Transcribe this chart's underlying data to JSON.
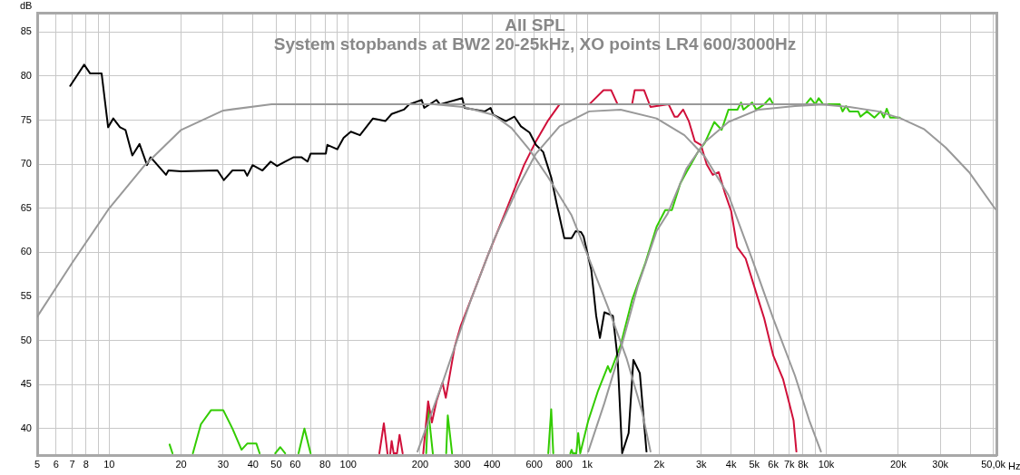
{
  "chart_data": {
    "type": "line",
    "title": "All SPL",
    "subtitle": "System stopbands at BW2 20-25kHz, XO points LR4 600/3000Hz",
    "ylabel": "dB",
    "xlabel": "Hz",
    "log": "x",
    "grid": true,
    "legend": false,
    "marker": "none",
    "line_style": "solid",
    "xlim": [
      5,
      51500
    ],
    "ylim": [
      37,
      87.2
    ],
    "xticks": [
      5,
      6,
      7,
      8,
      {
        "value": 9,
        "label": null
      },
      10,
      20,
      30,
      40,
      50,
      60,
      {
        "value": 70,
        "label": null
      },
      80,
      {
        "value": 90,
        "label": null
      },
      100,
      200,
      300,
      400,
      {
        "value": 500,
        "label": null
      },
      600,
      {
        "value": 700,
        "label": null
      },
      800,
      {
        "value": 900,
        "label": null
      },
      {
        "value": 1000,
        "label": "1k"
      },
      {
        "value": 2000,
        "label": "2k"
      },
      {
        "value": 3000,
        "label": "3k"
      },
      {
        "value": 4000,
        "label": "4k"
      },
      {
        "value": 5000,
        "label": "5k"
      },
      {
        "value": 6000,
        "label": "6k"
      },
      {
        "value": 7000,
        "label": "7k"
      },
      {
        "value": 8000,
        "label": "8k"
      },
      {
        "value": 9000,
        "label": null
      },
      {
        "value": 10000,
        "label": "10k"
      },
      {
        "value": 20000,
        "label": "20k"
      },
      {
        "value": 30000,
        "label": "30k"
      },
      {
        "value": 40000,
        "label": null
      },
      {
        "value": 50000,
        "label": "50,0k"
      }
    ],
    "yticks": [
      40,
      45,
      50,
      55,
      60,
      65,
      70,
      75,
      80,
      85
    ],
    "series": [
      {
        "color": "#999999",
        "x": [
          5,
          7,
          10,
          14.1,
          20,
          30,
          47.8,
          8000,
          9300,
          12500,
          16500,
          20500,
          25600,
          31600,
          39600,
          51000
        ],
        "values": [
          52.7,
          58.8,
          65.0,
          69.9,
          73.9,
          76.1,
          76.8,
          76.8,
          76.8,
          76.5,
          76.0,
          75.2,
          74.0,
          71.9,
          69.1,
          64.9
        ]
      },
      {
        "color": "#999999",
        "x": [
          150,
          228,
          304,
          405,
          483,
          575,
          687,
          860,
          1020,
          1220,
          1460,
          1700,
          1840
        ],
        "values": [
          76.8,
          76.8,
          76.5,
          75.6,
          74.1,
          71.6,
          68.5,
          64.2,
          59.2,
          53.8,
          48.0,
          41.8,
          37.4
        ]
      },
      {
        "color": "#999999",
        "x": [
          195,
          248,
          324,
          405,
          514,
          610,
          766,
          1020,
          1380,
          1950,
          2550,
          3100,
          3900,
          4900,
          6000,
          7400,
          8500,
          9500
        ],
        "values": [
          37.4,
          45.2,
          54.4,
          61.3,
          67.4,
          71.2,
          74.3,
          76.0,
          76.2,
          75.2,
          73.3,
          70.9,
          66.5,
          59.2,
          52.5,
          46.0,
          40.9,
          37.4
        ]
      },
      {
        "color": "#999999",
        "x": [
          1010,
          1180,
          1380,
          1630,
          1950,
          2170,
          2600,
          3100,
          3900,
          5200,
          7400,
          10100
        ],
        "values": [
          37.4,
          42.9,
          49.0,
          56.2,
          62.4,
          64.4,
          69.5,
          72.5,
          74.8,
          76.2,
          76.6,
          76.8
        ]
      },
      {
        "color": "#000000",
        "x": [
          6.87,
          7.86,
          8.33,
          9.3,
          9.9,
          10.4,
          11.1,
          11.7,
          12.5,
          13.4,
          14.4,
          14.9,
          17.3,
          17.7,
          20,
          28.4,
          30.2,
          32.8,
          36.8,
          37.8,
          39.8,
          43.8,
          47.4,
          50.4,
          54.4,
          59.2,
          63.7,
          67.6,
          69.6,
          80.6,
          81.8,
          90,
          95.7,
          102.6,
          112,
          127,
          143,
          152,
          171,
          180,
          203,
          208,
          234,
          242,
          300,
          307,
          373,
          394,
          405,
          457,
          496,
          528,
          574,
          610,
          654,
          707,
          744,
          802,
          860,
          895,
          942,
          966,
          1040,
          1090,
          1130,
          1180,
          1280,
          1340,
          1400,
          1490,
          1560,
          1660,
          1770
        ],
        "values": [
          78.9,
          81.3,
          80.3,
          80.3,
          74.2,
          75.2,
          74.2,
          73.9,
          71.0,
          72.3,
          69.9,
          70.8,
          68.8,
          69.3,
          69.2,
          69.3,
          68.2,
          69.3,
          69.3,
          68.7,
          69.9,
          69.3,
          70.3,
          69.8,
          70.3,
          70.8,
          70.8,
          70.3,
          71.2,
          71.2,
          72.2,
          71.7,
          73.0,
          73.7,
          73.3,
          75.2,
          74.9,
          75.7,
          76.2,
          76.8,
          77.3,
          76.4,
          77.3,
          76.8,
          77.5,
          76.4,
          76.0,
          76.4,
          75.6,
          74.9,
          75.4,
          74.3,
          73.6,
          72.2,
          71.4,
          68.5,
          65.6,
          61.6,
          61.6,
          62.4,
          62.3,
          61.8,
          58.0,
          52.8,
          50.3,
          53.2,
          52.8,
          48.0,
          37.2,
          39.5,
          47.8,
          46.3,
          37.4
        ]
      },
      {
        "color": "#d0103a",
        "x": [
          135,
          141,
          146,
          148,
          150,
          152,
          155,
          160,
          164,
          169,
          190,
          206,
          216,
          224,
          234,
          248,
          256,
          279,
          296,
          331,
          383,
          457,
          544,
          610,
          687,
          766,
          1020,
          1170,
          1260,
          1340,
          1540,
          1580,
          1730,
          1840,
          2190,
          2320,
          2390,
          2520,
          2660,
          2820,
          2990,
          3160,
          3350,
          3550,
          3760,
          4000,
          4240,
          4600,
          5080,
          5500,
          6000,
          6600,
          7000,
          7300,
          7500
        ],
        "values": [
          37.2,
          40.6,
          37.2,
          null,
          37.2,
          38.6,
          37.2,
          37.2,
          39.3,
          37.2,
          null,
          37.2,
          43.1,
          40.7,
          43.1,
          45.2,
          43.5,
          49.3,
          51.7,
          55.1,
          59.6,
          64.7,
          69.9,
          72.6,
          75.0,
          76.8,
          76.8,
          78.4,
          78.4,
          76.8,
          76.8,
          78.4,
          78.4,
          76.5,
          76.8,
          75.4,
          75.4,
          76.2,
          74.9,
          72.6,
          72.2,
          70.0,
          68.8,
          69.1,
          66.8,
          64.7,
          60.6,
          59.3,
          55.5,
          52.5,
          48.3,
          45.6,
          42.9,
          40.9,
          37.4
        ]
      },
      {
        "color": "#33cc00",
        "x": [
          17.9,
          18.4,
          20,
          22.4,
          24.2,
          26.7,
          30.0,
          32.8,
          35.8,
          37.8,
          41.3,
          42.6,
          46,
          49.5,
          52,
          54.5,
          58,
          62,
          65.6,
          69.6,
          100,
          212,
          216,
          226,
          240,
          257,
          261,
          272,
          400,
          687,
          707,
          721,
          800,
          850,
          860,
          870,
          900,
          917,
          935,
          1010,
          1110,
          1220,
          1250,
          1380,
          1540,
          1750,
          1950,
          2120,
          2260,
          2450,
          2600,
          2920,
          3100,
          3400,
          3650,
          3900,
          4250,
          4400,
          4500,
          4900,
          5100,
          5500,
          5800,
          6000,
          8200,
          8600,
          9000,
          9300,
          9700,
          11400,
          11700,
          12100,
          12500,
          13600,
          13900,
          14800,
          15900,
          16900,
          17400,
          17900,
          18500,
          20300
        ],
        "values": [
          38.2,
          37.2,
          null,
          37.2,
          40.5,
          42.1,
          42.1,
          40.0,
          37.6,
          38.3,
          38.3,
          37.2,
          null,
          37.2,
          37.9,
          37.2,
          null,
          37.2,
          40.0,
          37.2,
          null,
          37.2,
          42.2,
          37.2,
          null,
          37.2,
          41.5,
          37.2,
          null,
          37.2,
          42.2,
          37.2,
          null,
          37.2,
          37.6,
          37.2,
          37.2,
          39.5,
          37.2,
          40.9,
          44.3,
          47.1,
          46.4,
          49.5,
          54.6,
          58.8,
          62.9,
          64.8,
          64.8,
          67.8,
          69.1,
          71.5,
          72.4,
          74.8,
          73.9,
          76.2,
          76.2,
          77.0,
          76.2,
          77.0,
          76.2,
          76.8,
          77.5,
          76.8,
          76.8,
          77.5,
          76.8,
          77.5,
          76.8,
          76.8,
          76.0,
          76.6,
          76.0,
          76.0,
          75.4,
          76.0,
          75.3,
          76.0,
          75.3,
          76.3,
          75.3,
          75.3
        ]
      }
    ]
  }
}
